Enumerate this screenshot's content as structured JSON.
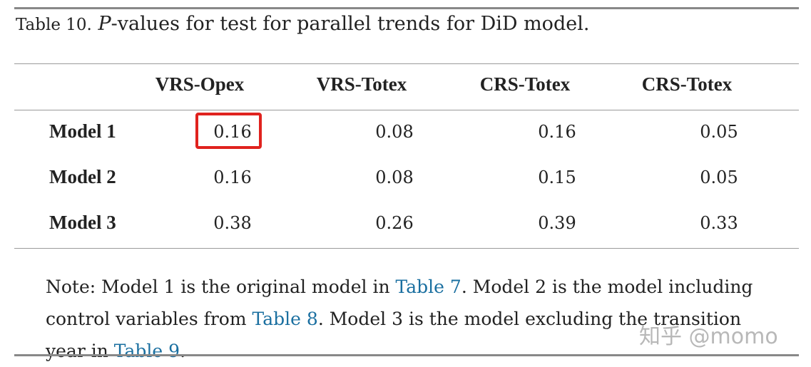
{
  "caption": {
    "label": "Table 10.",
    "italic_p": "P",
    "text": "-values for test for parallel trends for DiD model."
  },
  "table": {
    "columns": [
      "VRS-Opex",
      "VRS-Totex",
      "CRS-Totex",
      "CRS-Totex"
    ],
    "rows": [
      {
        "label": "Model 1",
        "values": [
          "0.16",
          "0.08",
          "0.16",
          "0.05"
        ]
      },
      {
        "label": "Model 2",
        "values": [
          "0.16",
          "0.08",
          "0.15",
          "0.05"
        ]
      },
      {
        "label": "Model 3",
        "values": [
          "0.38",
          "0.26",
          "0.39",
          "0.33"
        ]
      }
    ],
    "highlighted_cell": {
      "row": 0,
      "col": 0,
      "color": "#e0221e"
    }
  },
  "note": {
    "part1": "Note: Model 1 is the original model in ",
    "link1": "Table 7",
    "part2": ". Model 2 is the model including control variables from ",
    "link2": "Table 8",
    "part3": ". Model 3 is the model excluding the transition year in ",
    "link3": "Table 9",
    "part4": "."
  },
  "watermark": "知乎 @momo",
  "colors": {
    "link": "#1a6fa0",
    "highlight": "#e0221e",
    "rule": "#888888"
  }
}
